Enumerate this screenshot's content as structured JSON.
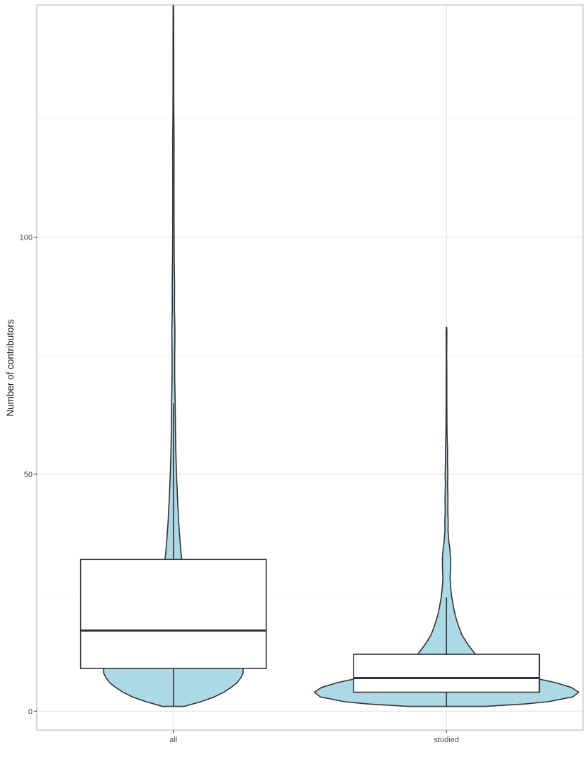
{
  "chart_data": {
    "type": "violin",
    "xlabel": "",
    "ylabel": "Number of contributors",
    "categories": [
      "all",
      "studied"
    ],
    "ylim": [
      -4,
      149
    ],
    "yticks": [
      {
        "value": 0,
        "label": "0"
      },
      {
        "value": 50,
        "label": "50"
      },
      {
        "value": 100,
        "label": "100"
      }
    ],
    "minor_yticks": [
      25,
      75,
      125
    ],
    "grid": true,
    "fill_color": "#add8e6",
    "outline_color": "#333333",
    "boxes": [
      {
        "category": "all",
        "q1": 9,
        "median": 17,
        "q3": 32,
        "whisker_low": 1,
        "whisker_high": 65
      },
      {
        "category": "studied",
        "q1": 4,
        "median": 7,
        "q3": 12,
        "whisker_low": 1,
        "whisker_high": 24
      }
    ],
    "violins": [
      {
        "category": "all",
        "y_max": 149,
        "profile": [
          [
            1,
            0.09
          ],
          [
            2,
            0.23
          ],
          [
            3,
            0.34
          ],
          [
            4,
            0.42
          ],
          [
            5,
            0.48
          ],
          [
            6,
            0.53
          ],
          [
            7,
            0.56
          ],
          [
            8,
            0.58
          ],
          [
            9,
            0.58
          ],
          [
            10,
            0.56
          ],
          [
            12,
            0.5
          ],
          [
            15,
            0.4
          ],
          [
            18,
            0.3
          ],
          [
            21,
            0.21
          ],
          [
            24,
            0.15
          ],
          [
            27,
            0.11
          ],
          [
            30,
            0.08
          ],
          [
            33,
            0.065
          ],
          [
            36,
            0.055
          ],
          [
            40,
            0.044
          ],
          [
            45,
            0.034
          ],
          [
            50,
            0.026
          ],
          [
            55,
            0.02
          ],
          [
            60,
            0.017
          ],
          [
            65,
            0.015
          ],
          [
            70,
            0.011
          ],
          [
            75,
            0.011
          ],
          [
            80,
            0.013
          ],
          [
            85,
            0.009
          ],
          [
            90,
            0.01
          ],
          [
            95,
            0.007
          ],
          [
            100,
            0.006
          ],
          [
            110,
            0.005
          ],
          [
            120,
            0.006
          ],
          [
            125,
            0.004
          ],
          [
            130,
            0.003
          ],
          [
            140,
            0.003
          ],
          [
            149,
            0.002
          ]
        ]
      },
      {
        "category": "studied",
        "y_max": 81,
        "profile": [
          [
            1,
            0.32
          ],
          [
            1.5,
            0.65
          ],
          [
            2,
            0.85
          ],
          [
            3,
            1.05
          ],
          [
            4,
            1.1
          ],
          [
            5,
            1.04
          ],
          [
            6,
            0.91
          ],
          [
            7,
            0.73
          ],
          [
            8,
            0.56
          ],
          [
            9,
            0.44
          ],
          [
            10,
            0.36
          ],
          [
            11,
            0.31
          ],
          [
            12,
            0.24
          ],
          [
            14,
            0.18
          ],
          [
            16,
            0.13
          ],
          [
            18,
            0.1
          ],
          [
            20,
            0.075
          ],
          [
            22,
            0.058
          ],
          [
            24,
            0.044
          ],
          [
            26,
            0.035
          ],
          [
            28,
            0.03
          ],
          [
            30,
            0.033
          ],
          [
            32,
            0.034
          ],
          [
            34,
            0.029
          ],
          [
            36,
            0.019
          ],
          [
            38,
            0.013
          ],
          [
            40,
            0.014
          ],
          [
            42,
            0.011
          ],
          [
            45,
            0.012
          ],
          [
            48,
            0.009
          ],
          [
            50,
            0.011
          ],
          [
            53,
            0.008
          ],
          [
            55,
            0.009
          ],
          [
            58,
            0.005
          ],
          [
            60,
            0.004
          ],
          [
            65,
            0.003
          ],
          [
            70,
            0.003
          ],
          [
            75,
            0.002
          ],
          [
            80,
            0.003
          ],
          [
            81,
            0.002
          ]
        ]
      }
    ]
  }
}
